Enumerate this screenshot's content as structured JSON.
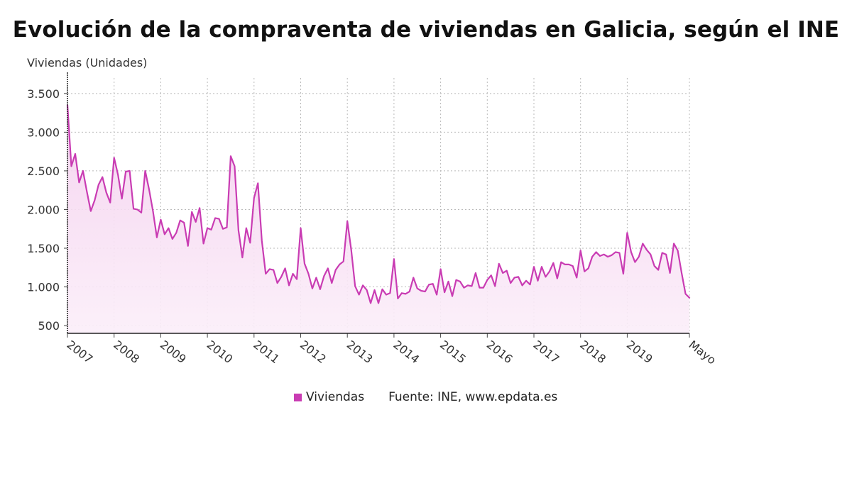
{
  "chart_data": {
    "type": "area",
    "title": "Evolución de la compraventa de viviendas en Galicia, según el INE",
    "ylabel": "Viviendas (Unidades)",
    "xlabel": "",
    "x_tick_labels": [
      "2007",
      "2008",
      "2009",
      "2010",
      "2011",
      "2012",
      "2013",
      "2014",
      "2015",
      "2016",
      "2017",
      "2018",
      "2019",
      "Mayo"
    ],
    "y_ticks": [
      500,
      1000,
      1500,
      2000,
      2500,
      3000,
      3500
    ],
    "y_tick_labels": [
      "500",
      "1.000",
      "1.500",
      "2.000",
      "2.500",
      "3.000",
      "3.500"
    ],
    "ylim": [
      400,
      3700
    ],
    "x_start": "Enero 2007",
    "x_end": "Mayo 2020",
    "grid": true,
    "series": [
      {
        "name": "Viviendas",
        "color": "#c93cb3",
        "values": [
          3350,
          2560,
          2720,
          2350,
          2500,
          2230,
          1980,
          2120,
          2320,
          2420,
          2220,
          2090,
          2670,
          2450,
          2140,
          2490,
          2500,
          2010,
          2000,
          1960,
          2500,
          2260,
          1980,
          1640,
          1870,
          1680,
          1760,
          1620,
          1700,
          1860,
          1830,
          1530,
          1970,
          1840,
          2020,
          1560,
          1760,
          1740,
          1890,
          1880,
          1750,
          1770,
          2690,
          2560,
          1730,
          1380,
          1760,
          1570,
          2150,
          2340,
          1600,
          1170,
          1230,
          1220,
          1050,
          1130,
          1240,
          1020,
          1170,
          1100,
          1760,
          1300,
          1170,
          980,
          1120,
          970,
          1140,
          1240,
          1050,
          1220,
          1290,
          1330,
          1850,
          1480,
          1010,
          900,
          1020,
          960,
          790,
          960,
          790,
          970,
          900,
          920,
          1360,
          850,
          920,
          910,
          940,
          1120,
          980,
          950,
          940,
          1030,
          1040,
          900,
          1230,
          930,
          1070,
          880,
          1090,
          1070,
          990,
          1020,
          1010,
          1180,
          990,
          990,
          1090,
          1150,
          1010,
          1300,
          1180,
          1210,
          1050,
          1120,
          1130,
          1020,
          1080,
          1030,
          1260,
          1080,
          1260,
          1130,
          1200,
          1310,
          1110,
          1320,
          1290,
          1290,
          1270,
          1120,
          1470,
          1200,
          1240,
          1390,
          1450,
          1400,
          1420,
          1390,
          1410,
          1450,
          1440,
          1170,
          1700,
          1450,
          1320,
          1390,
          1560,
          1480,
          1420,
          1270,
          1220,
          1440,
          1420,
          1180,
          1560,
          1470,
          1180,
          910,
          860
        ]
      }
    ],
    "legend": {
      "placement": "bottom",
      "entries": [
        "Viviendas"
      ]
    },
    "source": "Fuente: INE, www.epdata.es"
  }
}
